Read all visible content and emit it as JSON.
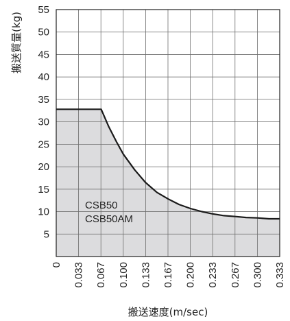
{
  "chart_data": {
    "type": "area",
    "title": "",
    "xlabel": "搬送速度(m/sec)",
    "ylabel": "搬送質量(kg)",
    "xlim": [
      0,
      0.333
    ],
    "ylim": [
      0,
      55
    ],
    "x_ticks": [
      "0",
      "0.033",
      "0.067",
      "0.100",
      "0.133",
      "0.167",
      "0.200",
      "0.233",
      "0.267",
      "0.300",
      "0.333"
    ],
    "y_ticks": [
      "5",
      "10",
      "15",
      "20",
      "25",
      "30",
      "35",
      "40",
      "45",
      "50",
      "55"
    ],
    "grid": true,
    "series_labels": [
      "CSB50",
      "CSB50AM"
    ],
    "series": [
      {
        "x": [
          0,
          0.067,
          0.078,
          0.09,
          0.1,
          0.117,
          0.133,
          0.15,
          0.167,
          0.183,
          0.2,
          0.217,
          0.233,
          0.25,
          0.267,
          0.283,
          0.3,
          0.317,
          0.333
        ],
        "values": [
          32.8,
          32.8,
          29.0,
          25.5,
          22.8,
          19.3,
          16.5,
          14.3,
          12.8,
          11.6,
          10.7,
          10.0,
          9.5,
          9.1,
          8.9,
          8.7,
          8.6,
          8.4,
          8.4
        ]
      }
    ],
    "colors": {
      "fill": "#dcdcde",
      "line": "#1a1a1a",
      "grid": "#6e6e6e",
      "frame": "#222222"
    }
  }
}
